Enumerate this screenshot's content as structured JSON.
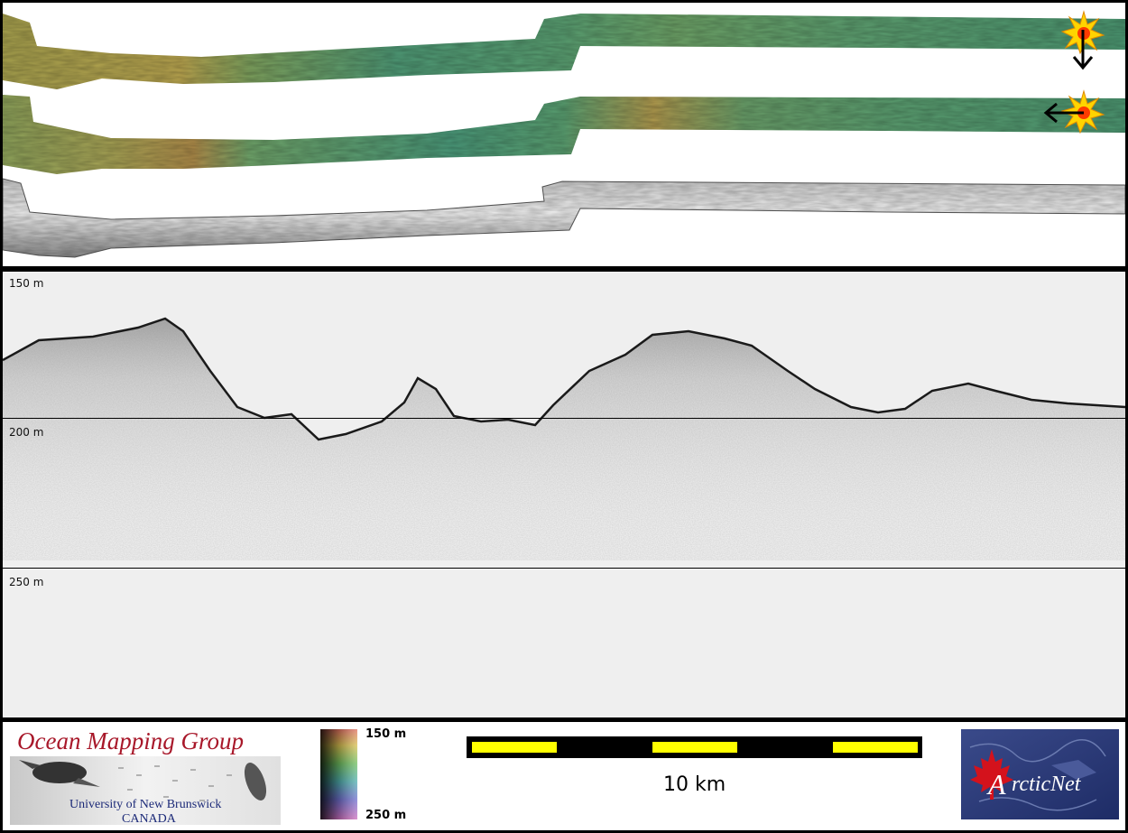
{
  "profile": {
    "depth_labels": [
      "150 m",
      "200 m",
      "250 m"
    ]
  },
  "footer": {
    "ogm_title": "Ocean Mapping Group",
    "ogm_subtitle1": "University of New Brunswick",
    "ogm_subtitle2": "CANADA",
    "colorbar_top": "150 m",
    "colorbar_bottom": "250 m",
    "scale_label": "10 km",
    "arcticnet_logo_text": "ArcticNet"
  },
  "colors": {
    "ogm_title": "#a8182a",
    "ogm_subtitle": "#1c2a78",
    "scale_segment": "#ffff00",
    "arcticnet_bg": "#2a3a7a",
    "maple_leaf": "#d4121c"
  }
}
